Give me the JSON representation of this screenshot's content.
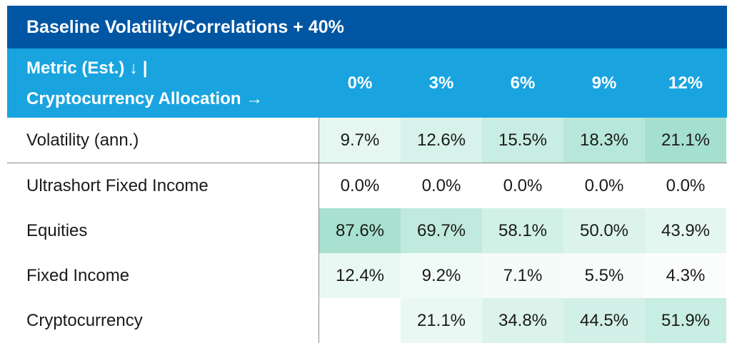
{
  "title": "Baseline Volatility/Correlations + 40%",
  "header": {
    "metric_line1": "Metric (Est.) ↓ |",
    "metric_line2": "Cryptocurrency Allocation →",
    "columns": [
      "0%",
      "3%",
      "6%",
      "9%",
      "12%"
    ]
  },
  "rows": [
    {
      "label": "Volatility (ann.)",
      "values": [
        "9.7%",
        "12.6%",
        "15.5%",
        "18.3%",
        "21.1%"
      ],
      "colors": [
        "#e6f7f2",
        "#d7f2ea",
        "#c8ede2",
        "#b7e7d9",
        "#a5e0cf"
      ]
    },
    {
      "label": "Ultrashort Fixed Income",
      "values": [
        "0.0%",
        "0.0%",
        "0.0%",
        "0.0%",
        "0.0%"
      ],
      "colors": [
        "#ffffff",
        "#ffffff",
        "#ffffff",
        "#ffffff",
        "#ffffff"
      ]
    },
    {
      "label": "Equities",
      "values": [
        "87.6%",
        "69.7%",
        "58.1%",
        "50.0%",
        "43.9%"
      ],
      "colors": [
        "#a8e1d0",
        "#c0eadd",
        "#d1f0e6",
        "#dcf3ec",
        "#e4f6f0"
      ]
    },
    {
      "label": "Fixed Income",
      "values": [
        "12.4%",
        "9.2%",
        "7.1%",
        "5.5%",
        "4.3%"
      ],
      "colors": [
        "#eaf8f3",
        "#f0faf7",
        "#f4fbf9",
        "#f7fcfb",
        "#fafdfc"
      ]
    },
    {
      "label": "Cryptocurrency",
      "values": [
        "",
        "21.1%",
        "34.8%",
        "44.5%",
        "51.9%"
      ],
      "colors": [
        "#ffffff",
        "#eaf8f3",
        "#dcf3ec",
        "#d2f0e7",
        "#c8ede2"
      ]
    }
  ]
}
